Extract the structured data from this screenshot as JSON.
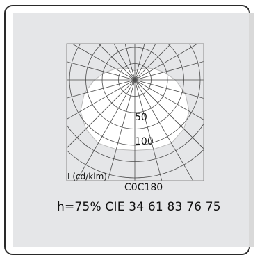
{
  "chart_data": {
    "type": "polar",
    "unit_label": "I (cd/klm)",
    "rings": [
      50,
      100
    ],
    "series": [
      {
        "name": "C0C180",
        "angles_deg": [
          0,
          15,
          30,
          45,
          60,
          75,
          90,
          105,
          120,
          135,
          150,
          165,
          180
        ],
        "values": [
          108,
          110,
          112,
          106,
          96,
          80,
          62,
          46,
          34,
          26,
          20,
          16,
          14
        ]
      }
    ],
    "legend": "bottom",
    "grid": true
  },
  "footer_text": "h=75% CIE 34 61 83 76 75",
  "colors": {
    "panel": "#e5e6e8",
    "curve_fill": "#ffffff",
    "grid": "#4a4a4a"
  }
}
